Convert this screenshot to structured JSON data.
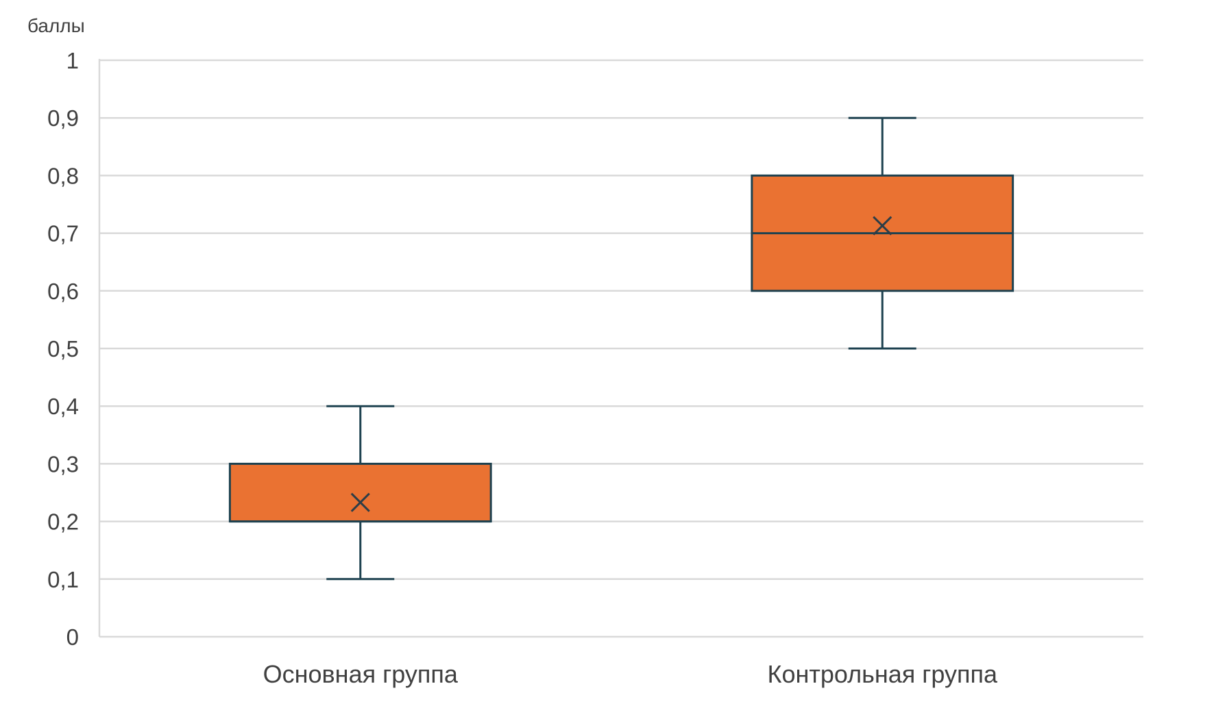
{
  "chart_data": {
    "type": "boxplot",
    "title": "",
    "ylabel": "баллы",
    "xlabel": "",
    "ylim": [
      0,
      1
    ],
    "yticks": [
      0,
      0.1,
      0.2,
      0.3,
      0.4,
      0.5,
      0.6,
      0.7,
      0.8,
      0.9,
      1
    ],
    "ytick_labels": [
      "0",
      "0,1",
      "0,2",
      "0,3",
      "0,4",
      "0,5",
      "0,6",
      "0,7",
      "0,8",
      "0,9",
      "1"
    ],
    "grid": true,
    "categories": [
      "Основная группа",
      "Контрольная группа"
    ],
    "boxes": [
      {
        "min": 0.1,
        "q1": 0.2,
        "median": 0.2,
        "q3": 0.3,
        "max": 0.4,
        "mean": 0.233
      },
      {
        "min": 0.5,
        "q1": 0.6,
        "median": 0.7,
        "q3": 0.8,
        "max": 0.9,
        "mean": 0.713
      }
    ],
    "colors": {
      "box_fill": "#ea7232",
      "box_stroke": "#1e4250",
      "grid": "#d9d9d9",
      "text": "#404040"
    }
  }
}
